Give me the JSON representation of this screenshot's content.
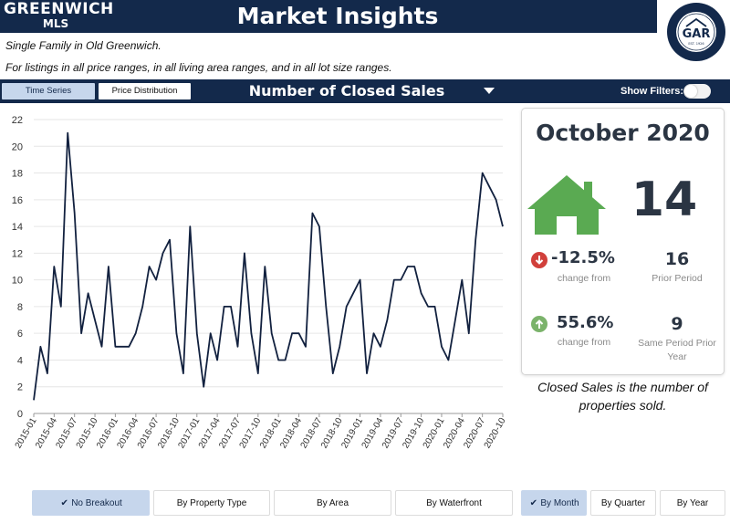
{
  "header": {
    "logo_main": "GREENWICH",
    "logo_sub": "MLS",
    "title": "Market Insights",
    "seal_label": "GAR",
    "seal_ring_text": "GREENWICH ASSOCIATION OF REALTORS · GREENWICH MULTIPLE LISTING SERVICE",
    "seal_est": "EST. 1926"
  },
  "subtitle": {
    "line1": "Single Family in Old Greenwich.",
    "line2": "For listings in all price ranges, in all living area ranges, and in all lot size ranges."
  },
  "toolbar": {
    "tab_time_series": "Time Series",
    "tab_price_distribution": "Price Distribution",
    "metric": "Number of Closed Sales",
    "show_filters": "Show Filters:",
    "show_filters_on": false
  },
  "card": {
    "month": "October 2020",
    "value": "14",
    "change1_pct": "-12.5%",
    "change1_caption": "change from",
    "change1_value": "16",
    "change1_label": "Prior Period",
    "change2_pct": "55.6%",
    "change2_caption": "change from",
    "change2_value": "9",
    "change2_label_1": "Same Period Prior",
    "change2_label_2": "Year",
    "caption": "Closed Sales is the number of properties sold."
  },
  "colors": {
    "navy": "#13294b",
    "line": "#12213f",
    "house_green": "#5aaa52",
    "down_red": "#d1403b",
    "up_green": "#7bb36b",
    "active_button": "#c6d6ec"
  },
  "icons": {
    "house": "house-icon",
    "down": "arrow-down-circle-icon",
    "up": "arrow-up-circle-icon",
    "caret": "caret-down-icon",
    "check": "check-icon"
  },
  "bottom": {
    "breakouts": [
      "No Breakout",
      "By Property Type",
      "By Area",
      "By Waterfront"
    ],
    "periods": [
      "By Month",
      "By Quarter",
      "By Year"
    ],
    "active_breakout": 0,
    "active_period": 0
  },
  "chart_data": {
    "type": "line",
    "ylim": [
      0,
      22
    ],
    "yticks": [
      0,
      2,
      4,
      6,
      8,
      10,
      12,
      14,
      16,
      18,
      20,
      22
    ],
    "grid": true,
    "legend": "none",
    "x_tick_labels": [
      "2015-01",
      "2015-04",
      "2015-07",
      "2015-10",
      "2016-01",
      "2016-04",
      "2016-07",
      "2016-10",
      "2017-01",
      "2017-04",
      "2017-07",
      "2017-10",
      "2018-01",
      "2018-04",
      "2018-07",
      "2018-10",
      "2019-01",
      "2019-04",
      "2019-07",
      "2019-10",
      "2020-01",
      "2020-04",
      "2020-07",
      "2020-10"
    ],
    "x": [
      "2015-01",
      "2015-02",
      "2015-03",
      "2015-04",
      "2015-05",
      "2015-06",
      "2015-07",
      "2015-08",
      "2015-09",
      "2015-10",
      "2015-11",
      "2015-12",
      "2016-01",
      "2016-02",
      "2016-03",
      "2016-04",
      "2016-05",
      "2016-06",
      "2016-07",
      "2016-08",
      "2016-09",
      "2016-10",
      "2016-11",
      "2016-12",
      "2017-01",
      "2017-02",
      "2017-03",
      "2017-04",
      "2017-05",
      "2017-06",
      "2017-07",
      "2017-08",
      "2017-09",
      "2017-10",
      "2017-11",
      "2017-12",
      "2018-01",
      "2018-02",
      "2018-03",
      "2018-04",
      "2018-05",
      "2018-06",
      "2018-07",
      "2018-08",
      "2018-09",
      "2018-10",
      "2018-11",
      "2018-12",
      "2019-01",
      "2019-02",
      "2019-03",
      "2019-04",
      "2019-05",
      "2019-06",
      "2019-07",
      "2019-08",
      "2019-09",
      "2019-10",
      "2019-11",
      "2019-12",
      "2020-01",
      "2020-02",
      "2020-03",
      "2020-04",
      "2020-05",
      "2020-06",
      "2020-07",
      "2020-08",
      "2020-09",
      "2020-10"
    ],
    "values": [
      1,
      5,
      3,
      11,
      8,
      21,
      15,
      6,
      9,
      7,
      5,
      11,
      5,
      5,
      5,
      6,
      8,
      11,
      10,
      12,
      13,
      6,
      3,
      14,
      6,
      2,
      6,
      4,
      8,
      8,
      5,
      12,
      6,
      3,
      11,
      6,
      4,
      4,
      6,
      6,
      5,
      15,
      14,
      8,
      3,
      5,
      8,
      9,
      10,
      3,
      6,
      5,
      7,
      10,
      10,
      11,
      11,
      9,
      8,
      8,
      5,
      4,
      7,
      10,
      6,
      13,
      18,
      17,
      16,
      14
    ]
  }
}
